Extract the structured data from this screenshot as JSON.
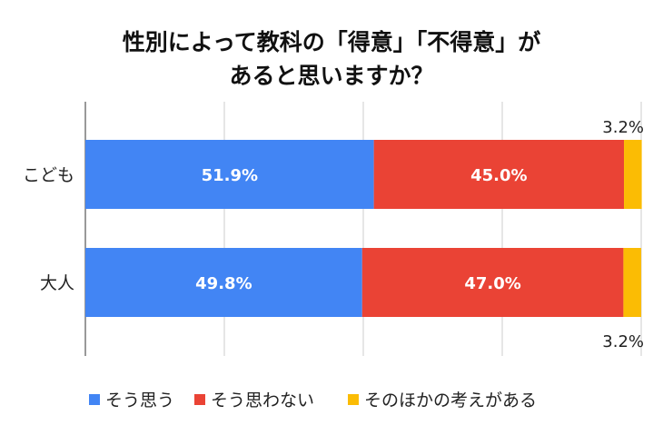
{
  "chart_data": {
    "type": "bar",
    "orientation": "horizontal",
    "stacked": "100%",
    "title_lines": [
      "性別によって教科の「得意」「不得意」が",
      "あると思いますか？"
    ],
    "categories": [
      "こども",
      "大人"
    ],
    "series": [
      {
        "name": "そう思う",
        "color": "#4285F4",
        "values": [
          51.9,
          49.8
        ],
        "labels": [
          "51.9%",
          "49.8%"
        ]
      },
      {
        "name": "そう思わない",
        "color": "#EA4335",
        "values": [
          45.0,
          47.0
        ],
        "labels": [
          "45.0%",
          "47.0%"
        ]
      },
      {
        "name": "そのほかの考えがある",
        "color": "#FBBC04",
        "values": [
          3.2,
          3.2
        ],
        "labels": [
          "3.2%",
          "3.2%"
        ]
      }
    ],
    "xlim": [
      0,
      100
    ],
    "x_gridlines": [
      0,
      25,
      50,
      75,
      100
    ],
    "x_tick_labels_shown": false,
    "grid": true,
    "legend_position": "bottom"
  }
}
